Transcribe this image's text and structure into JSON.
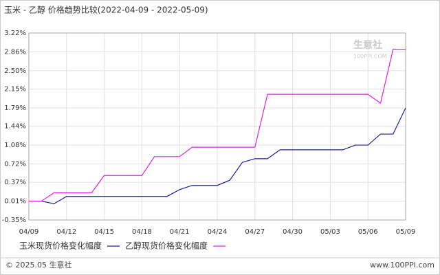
{
  "chart_data": {
    "type": "line",
    "title": "玉米 - 乙醇 价格趋势比较(2022-04-09 - 2022-05-09)",
    "categories": [
      "04/09",
      null,
      null,
      "04/12",
      null,
      null,
      "04/15",
      null,
      null,
      "04/18",
      null,
      null,
      "04/21",
      null,
      null,
      "04/24",
      null,
      null,
      "04/27",
      null,
      null,
      "04/30",
      null,
      null,
      "05/03",
      null,
      null,
      "05/06",
      null,
      null,
      "05/09"
    ],
    "series": [
      {
        "name": "玉米现货价格变化幅度",
        "color": "#1c1ca8",
        "values": [
          0.01,
          0.01,
          -0.04,
          0.1,
          0.1,
          0.1,
          0.1,
          0.1,
          0.1,
          0.1,
          0.1,
          0.1,
          0.23,
          0.31,
          0.31,
          0.31,
          0.41,
          0.75,
          0.82,
          0.82,
          0.99,
          0.99,
          0.99,
          0.99,
          0.99,
          0.99,
          1.08,
          1.08,
          1.29,
          1.29,
          1.79
        ]
      },
      {
        "name": "乙醇现货价格变化幅度",
        "color": "#e020e0",
        "values": [
          0.01,
          0.01,
          0.17,
          0.17,
          0.17,
          0.17,
          0.5,
          0.5,
          0.5,
          0.5,
          0.86,
          0.86,
          0.86,
          1.04,
          1.04,
          1.04,
          1.04,
          1.04,
          1.04,
          2.05,
          2.05,
          2.05,
          2.05,
          2.05,
          2.05,
          2.05,
          2.05,
          2.05,
          1.88,
          2.91,
          2.91
        ]
      }
    ],
    "ylim": [
      -0.35,
      3.22
    ],
    "yticks": [
      {
        "value": -0.35,
        "label": "-0.35%"
      },
      {
        "value": 0.01,
        "label": "0.01%"
      },
      {
        "value": 0.37,
        "label": "0.37%"
      },
      {
        "value": 0.72,
        "label": "0.72%"
      },
      {
        "value": 1.08,
        "label": "1.08%"
      },
      {
        "value": 1.44,
        "label": "1.44%"
      },
      {
        "value": 1.79,
        "label": "1.79%"
      },
      {
        "value": 2.15,
        "label": "2.15%"
      },
      {
        "value": 2.5,
        "label": "2.50%"
      },
      {
        "value": 2.86,
        "label": "2.86%"
      },
      {
        "value": 3.22,
        "label": "3.22%"
      }
    ],
    "grid": true,
    "watermark_name": "生意社",
    "watermark_url": "100PPI.COM",
    "footer_left": "© 2025.05 生意社",
    "footer_right": "www.100PPI.com"
  }
}
